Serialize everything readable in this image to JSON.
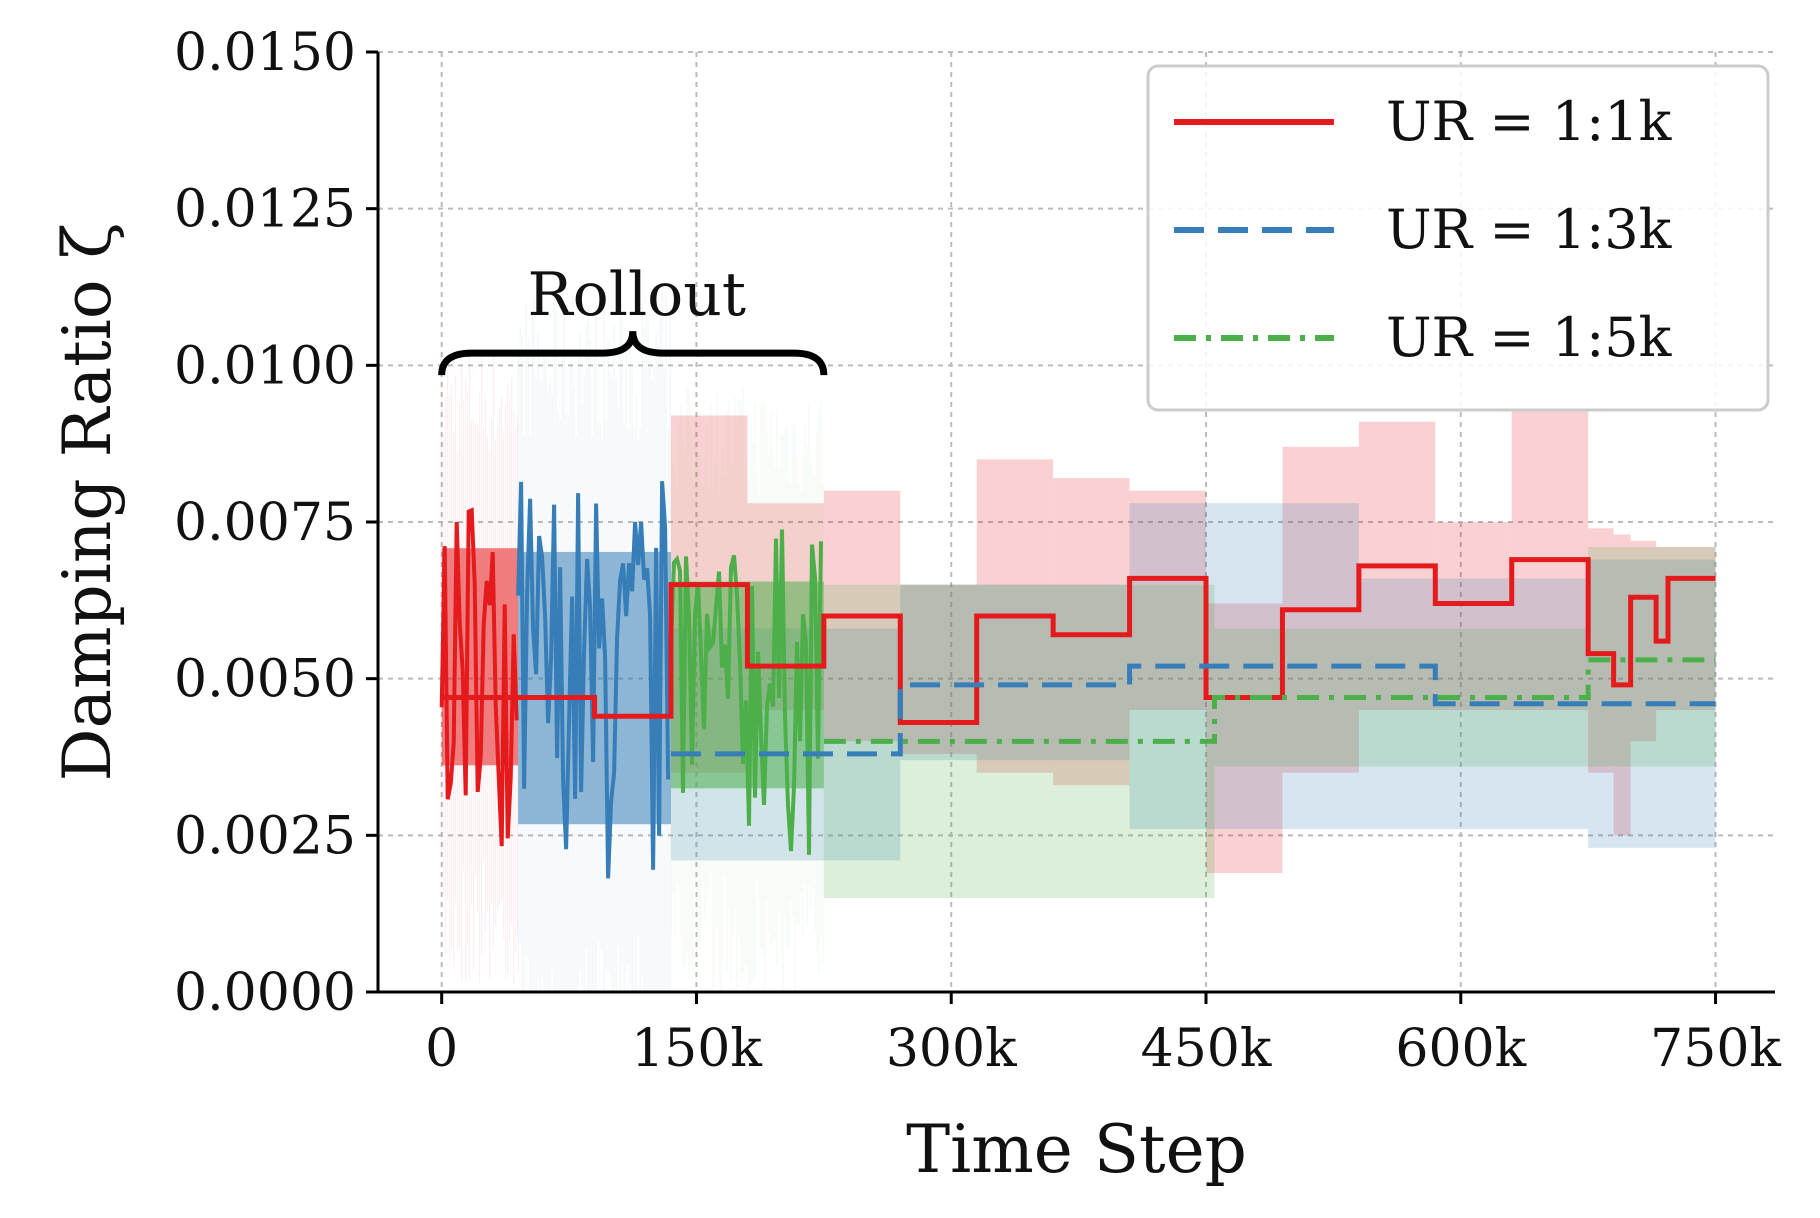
{
  "chart_data": {
    "type": "line",
    "title": "",
    "xlabel": "Time Step",
    "ylabel": "Damping Ratio ζ",
    "xlim": [
      -37500,
      785000
    ],
    "ylim": [
      0,
      0.015
    ],
    "xticks": [
      0,
      150000,
      300000,
      450000,
      600000,
      750000
    ],
    "xtick_labels": [
      "0",
      "150k",
      "300k",
      "450k",
      "600k",
      "750k"
    ],
    "yticks": [
      0,
      0.0025,
      0.005,
      0.0075,
      0.01,
      0.0125,
      0.015
    ],
    "ytick_labels": [
      "0.0000",
      "0.0025",
      "0.0050",
      "0.0075",
      "0.0100",
      "0.0125",
      "0.0150"
    ],
    "grid": true,
    "legend_position": "top-right",
    "annotation": {
      "text": "Rollout",
      "x_start": 0,
      "x_end": 225000,
      "y": 0.0101
    },
    "series": [
      {
        "name": "UR = 1:1k",
        "color": "#e41a1c",
        "style": "solid",
        "noisy_region": [
          0,
          45000,
          0.0022,
          0.0085
        ],
        "steps": [
          [
            0,
            0.0047
          ],
          [
            90000,
            0.0044
          ],
          [
            135000,
            0.0065
          ],
          [
            180000,
            0.0052
          ],
          [
            225000,
            0.006
          ],
          [
            270000,
            0.0043
          ],
          [
            315000,
            0.006
          ],
          [
            360000,
            0.0057
          ],
          [
            405000,
            0.0066
          ],
          [
            450000,
            0.0047
          ],
          [
            495000,
            0.0061
          ],
          [
            540000,
            0.0068
          ],
          [
            585000,
            0.0062
          ],
          [
            630000,
            0.0069
          ],
          [
            675000,
            0.0054
          ],
          [
            690000,
            0.0049
          ],
          [
            700000,
            0.0063
          ],
          [
            715000,
            0.0056
          ],
          [
            722000,
            0.0066
          ],
          [
            750000,
            0.0066
          ]
        ],
        "band": [
          [
            135000,
            0.0092,
            0.0035
          ],
          [
            180000,
            0.0078,
            0.0045
          ],
          [
            225000,
            0.008,
            0.004
          ],
          [
            270000,
            0.0065,
            0.0038
          ],
          [
            315000,
            0.0085,
            0.0035
          ],
          [
            360000,
            0.0082,
            0.0033
          ],
          [
            405000,
            0.008,
            0.0045
          ],
          [
            450000,
            0.0062,
            0.0019
          ],
          [
            495000,
            0.0087,
            0.0035
          ],
          [
            540000,
            0.0091,
            0.0045
          ],
          [
            585000,
            0.0075,
            0.0045
          ],
          [
            630000,
            0.0093,
            0.0045
          ],
          [
            675000,
            0.0074,
            0.0035
          ],
          [
            690000,
            0.0073,
            0.0025
          ],
          [
            700000,
            0.0072,
            0.004
          ],
          [
            715000,
            0.0071,
            0.0045
          ],
          [
            750000,
            0.0071,
            0.0045
          ]
        ]
      },
      {
        "name": "UR = 1:3k",
        "color": "#377eb8",
        "style": "dashed",
        "noisy_region": [
          45000,
          135000,
          0.0009,
          0.0088
        ],
        "steps": [
          [
            135000,
            0.0038
          ],
          [
            270000,
            0.0049
          ],
          [
            405000,
            0.0052
          ],
          [
            540000,
            0.0052
          ],
          [
            585000,
            0.0046
          ],
          [
            675000,
            0.0046
          ],
          [
            750000,
            0.0046
          ]
        ],
        "band": [
          [
            135000,
            0.0058,
            0.0021
          ],
          [
            270000,
            0.0065,
            0.0037
          ],
          [
            405000,
            0.0078,
            0.0026
          ],
          [
            540000,
            0.0066,
            0.0026
          ],
          [
            675000,
            0.0069,
            0.0023
          ],
          [
            750000,
            0.0069,
            0.0023
          ]
        ]
      },
      {
        "name": "UR = 1:5k",
        "color": "#4daf4a",
        "style": "dashdot",
        "noisy_region": [
          135000,
          225000,
          0.0019,
          0.0079
        ],
        "steps": [
          [
            225000,
            0.004
          ],
          [
            455000,
            0.0047
          ],
          [
            675000,
            0.0053
          ],
          [
            750000,
            0.0053
          ]
        ],
        "band": [
          [
            225000,
            0.0065,
            0.0015
          ],
          [
            455000,
            0.0058,
            0.0036
          ],
          [
            675000,
            0.0071,
            0.0036
          ],
          [
            750000,
            0.0071,
            0.0036
          ]
        ]
      }
    ]
  }
}
